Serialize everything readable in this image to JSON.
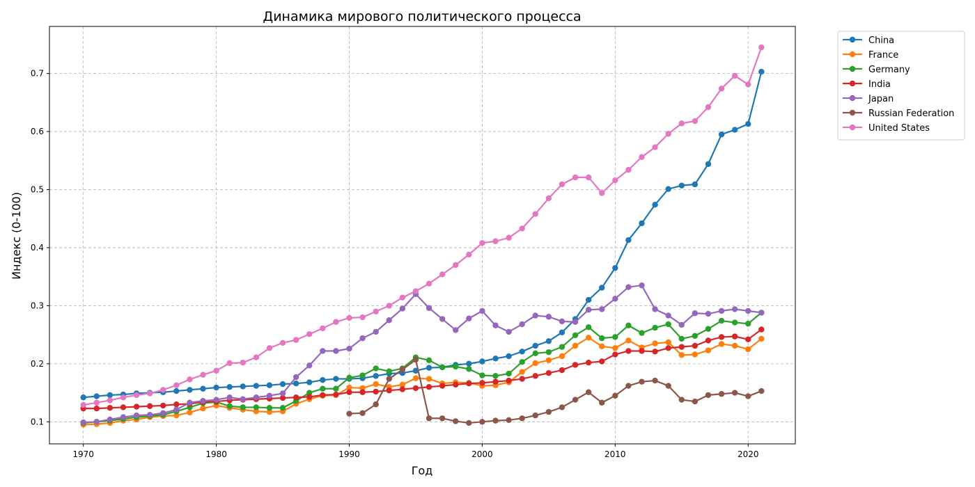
{
  "chart_data": {
    "type": "line",
    "title": "Динамика мирового политического процесса",
    "xlabel": "Год",
    "ylabel": "Индекс (0-100)",
    "xlim": [
      1967.45,
      2023.55
    ],
    "ylim": [
      0.062,
      0.781
    ],
    "xticks": [
      1970,
      1980,
      1990,
      2000,
      2010,
      2020
    ],
    "yticks": [
      0.1,
      0.2,
      0.3,
      0.4,
      0.5,
      0.6,
      0.7
    ],
    "grid": true,
    "legend_position": "outside-upper-right",
    "series": [
      {
        "name": "China",
        "color": "#1f77b4",
        "start": 1970,
        "values": [
          0.142,
          0.144,
          0.146,
          0.147,
          0.149,
          0.15,
          0.151,
          0.153,
          0.155,
          0.157,
          0.159,
          0.16,
          0.161,
          0.162,
          0.163,
          0.165,
          0.166,
          0.168,
          0.172,
          0.174,
          0.174,
          0.175,
          0.179,
          0.183,
          0.184,
          0.188,
          0.193,
          0.194,
          0.198,
          0.2,
          0.204,
          0.209,
          0.213,
          0.221,
          0.231,
          0.239,
          0.254,
          0.277,
          0.31,
          0.331,
          0.365,
          0.413,
          0.442,
          0.474,
          0.501,
          0.507,
          0.509,
          0.544,
          0.595,
          0.603,
          0.613,
          0.703
        ]
      },
      {
        "name": "France",
        "color": "#ff7f0e",
        "start": 1970,
        "values": [
          0.095,
          0.096,
          0.098,
          0.102,
          0.104,
          0.108,
          0.11,
          0.111,
          0.116,
          0.123,
          0.128,
          0.124,
          0.121,
          0.118,
          0.117,
          0.118,
          0.131,
          0.139,
          0.145,
          0.146,
          0.159,
          0.158,
          0.165,
          0.16,
          0.164,
          0.175,
          0.174,
          0.166,
          0.168,
          0.167,
          0.162,
          0.163,
          0.168,
          0.186,
          0.201,
          0.206,
          0.213,
          0.231,
          0.245,
          0.23,
          0.227,
          0.24,
          0.228,
          0.235,
          0.237,
          0.215,
          0.216,
          0.223,
          0.234,
          0.231,
          0.225,
          0.243
        ]
      },
      {
        "name": "Germany",
        "color": "#2ca02c",
        "start": 1970,
        "values": [
          0.098,
          0.1,
          0.102,
          0.105,
          0.108,
          0.11,
          0.112,
          0.118,
          0.125,
          0.132,
          0.134,
          0.127,
          0.125,
          0.125,
          0.124,
          0.124,
          0.136,
          0.15,
          0.157,
          0.157,
          0.176,
          0.18,
          0.192,
          0.187,
          0.192,
          0.211,
          0.206,
          0.194,
          0.195,
          0.191,
          0.18,
          0.179,
          0.183,
          0.203,
          0.218,
          0.22,
          0.229,
          0.249,
          0.263,
          0.244,
          0.246,
          0.266,
          0.253,
          0.262,
          0.268,
          0.243,
          0.248,
          0.26,
          0.274,
          0.271,
          0.269,
          0.288
        ]
      },
      {
        "name": "India",
        "color": "#d62728",
        "start": 1970,
        "values": [
          0.123,
          0.123,
          0.124,
          0.125,
          0.126,
          0.127,
          0.128,
          0.13,
          0.131,
          0.134,
          0.135,
          0.137,
          0.138,
          0.139,
          0.14,
          0.141,
          0.142,
          0.143,
          0.146,
          0.147,
          0.151,
          0.151,
          0.152,
          0.154,
          0.156,
          0.158,
          0.16,
          0.162,
          0.164,
          0.166,
          0.167,
          0.169,
          0.171,
          0.174,
          0.179,
          0.184,
          0.189,
          0.198,
          0.202,
          0.204,
          0.216,
          0.222,
          0.222,
          0.221,
          0.227,
          0.229,
          0.231,
          0.24,
          0.246,
          0.247,
          0.242,
          0.259
        ]
      },
      {
        "name": "Japan",
        "color": "#9467bd",
        "start": 1970,
        "values": [
          0.099,
          0.1,
          0.104,
          0.108,
          0.111,
          0.112,
          0.115,
          0.121,
          0.133,
          0.136,
          0.138,
          0.142,
          0.139,
          0.142,
          0.145,
          0.149,
          0.177,
          0.197,
          0.222,
          0.222,
          0.226,
          0.244,
          0.255,
          0.275,
          0.295,
          0.32,
          0.296,
          0.277,
          0.258,
          0.278,
          0.291,
          0.266,
          0.255,
          0.268,
          0.283,
          0.281,
          0.273,
          0.272,
          0.293,
          0.294,
          0.312,
          0.332,
          0.335,
          0.294,
          0.283,
          0.267,
          0.287,
          0.286,
          0.291,
          0.294,
          0.291,
          0.288
        ]
      },
      {
        "name": "Russian Federation",
        "color": "#8c564b",
        "start": 1990,
        "values": [
          0.114,
          0.115,
          0.13,
          0.174,
          0.19,
          0.207,
          0.106,
          0.106,
          0.101,
          0.098,
          0.1,
          0.102,
          0.103,
          0.106,
          0.111,
          0.117,
          0.125,
          0.138,
          0.151,
          0.133,
          0.145,
          0.162,
          0.169,
          0.171,
          0.162,
          0.138,
          0.135,
          0.146,
          0.148,
          0.15,
          0.144,
          0.153
        ]
      },
      {
        "name": "United States",
        "color": "#e377c2",
        "start": 1970,
        "values": [
          0.129,
          0.133,
          0.137,
          0.142,
          0.146,
          0.149,
          0.155,
          0.163,
          0.173,
          0.181,
          0.188,
          0.201,
          0.202,
          0.211,
          0.227,
          0.236,
          0.241,
          0.251,
          0.261,
          0.272,
          0.279,
          0.28,
          0.29,
          0.3,
          0.314,
          0.325,
          0.338,
          0.354,
          0.37,
          0.388,
          0.408,
          0.411,
          0.417,
          0.433,
          0.458,
          0.485,
          0.509,
          0.521,
          0.521,
          0.494,
          0.516,
          0.534,
          0.556,
          0.573,
          0.596,
          0.614,
          0.618,
          0.642,
          0.674,
          0.696,
          0.681,
          0.745
        ]
      }
    ]
  }
}
